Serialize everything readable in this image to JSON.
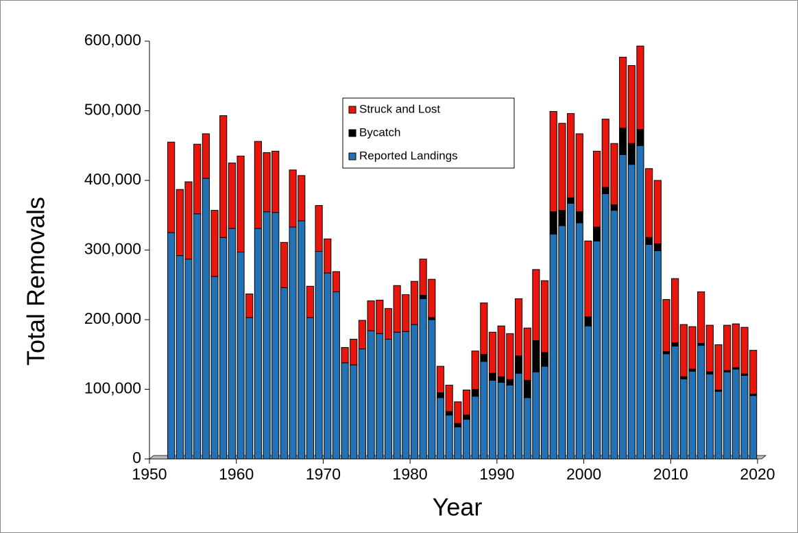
{
  "chart_data": {
    "type": "bar",
    "stacked": true,
    "x_label": "Year",
    "y_label": "Total Removals",
    "x": [
      1952,
      1953,
      1954,
      1955,
      1956,
      1957,
      1958,
      1959,
      1960,
      1961,
      1962,
      1963,
      1964,
      1965,
      1966,
      1967,
      1968,
      1969,
      1970,
      1971,
      1972,
      1973,
      1974,
      1975,
      1976,
      1977,
      1978,
      1979,
      1980,
      1981,
      1982,
      1983,
      1984,
      1985,
      1986,
      1987,
      1988,
      1989,
      1990,
      1991,
      1992,
      1993,
      1994,
      1995,
      1996,
      1997,
      1998,
      1999,
      2000,
      2001,
      2002,
      2003,
      2004,
      2005,
      2006,
      2007,
      2008,
      2009,
      2010,
      2011,
      2012,
      2013,
      2014,
      2015,
      2016,
      2017,
      2018,
      2019
    ],
    "series": [
      {
        "name": "Reported Landings",
        "color": "#2372b6",
        "values": [
          325000,
          292000,
          287000,
          352000,
          403000,
          262000,
          318000,
          331000,
          297000,
          203000,
          331000,
          355000,
          354000,
          246000,
          333000,
          342000,
          203000,
          298000,
          267000,
          240000,
          138000,
          135000,
          158000,
          184000,
          180000,
          172000,
          182000,
          183000,
          193000,
          230000,
          200000,
          88000,
          63000,
          46000,
          57000,
          90000,
          140000,
          113000,
          110000,
          106000,
          123000,
          88000,
          125000,
          133000,
          323000,
          335000,
          367000,
          339000,
          191000,
          313000,
          381000,
          357000,
          437000,
          423000,
          450000,
          308000,
          299000,
          151000,
          162000,
          115000,
          126000,
          163000,
          122000,
          97000,
          125000,
          129000,
          120000,
          91000
        ]
      },
      {
        "name": "Bycatch",
        "color": "#000000",
        "values": [
          0,
          0,
          0,
          0,
          0,
          0,
          0,
          0,
          0,
          0,
          0,
          0,
          0,
          0,
          0,
          0,
          0,
          0,
          0,
          0,
          0,
          0,
          0,
          0,
          0,
          0,
          0,
          0,
          0,
          5000,
          3000,
          7000,
          5000,
          5000,
          6000,
          10000,
          10000,
          10000,
          8000,
          8000,
          25000,
          25000,
          45000,
          20000,
          32000,
          22000,
          8000,
          16000,
          13000,
          20000,
          9000,
          8000,
          38000,
          30000,
          23000,
          10000,
          10000,
          3000,
          5000,
          3000,
          3000,
          3000,
          3000,
          2000,
          2000,
          2000,
          2000,
          2000
        ]
      },
      {
        "name": "Struck and Lost",
        "color": "#e8160c",
        "values": [
          130000,
          95000,
          111000,
          100000,
          64000,
          95000,
          175000,
          94000,
          138000,
          34000,
          125000,
          85000,
          88000,
          65000,
          82000,
          65000,
          45000,
          66000,
          49000,
          29000,
          22000,
          37000,
          41000,
          43000,
          48000,
          44000,
          67000,
          53000,
          62000,
          52000,
          55000,
          38000,
          38000,
          31000,
          36000,
          55000,
          74000,
          59000,
          73000,
          66000,
          82000,
          75000,
          102000,
          103000,
          144000,
          125000,
          121000,
          112000,
          109000,
          109000,
          98000,
          88000,
          102000,
          112000,
          120000,
          99000,
          91000,
          75000,
          92000,
          75000,
          61000,
          74000,
          67000,
          65000,
          65000,
          63000,
          67000,
          63000
        ]
      }
    ],
    "xlim": [
      1950,
      2020
    ],
    "xticks": [
      1950,
      1960,
      1970,
      1980,
      1990,
      2000,
      2010,
      2020
    ],
    "ylim": [
      0,
      600000
    ],
    "yticks": [
      0,
      {
        "value": 100000,
        "label": "100,000"
      },
      {
        "value": 200000,
        "label": "200,000"
      },
      {
        "value": 300000,
        "label": "300,000"
      },
      {
        "value": 400000,
        "label": "400,000"
      },
      {
        "value": 500000,
        "label": "500,000"
      },
      {
        "value": 600000,
        "label": "600,000"
      }
    ],
    "grid": false,
    "legend": "top"
  }
}
